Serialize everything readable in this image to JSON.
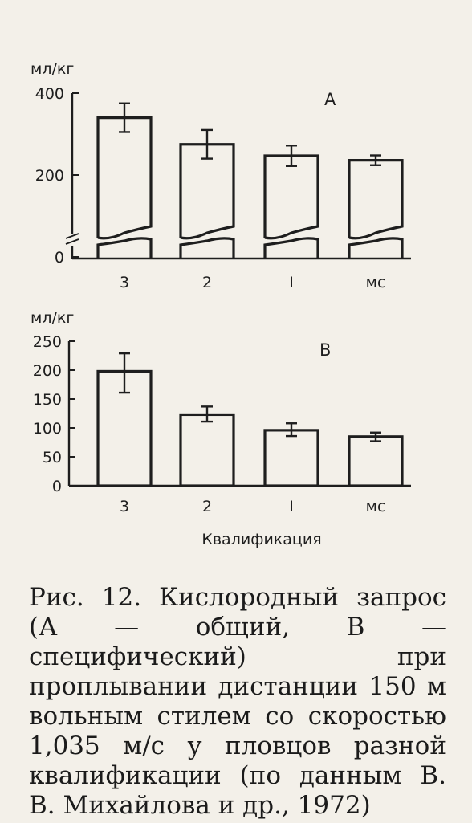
{
  "chart_data": [
    {
      "type": "bar",
      "panel_label": "А",
      "ylabel": "мл/кг",
      "categories": [
        "3",
        "2",
        "I",
        "мс"
      ],
      "values": [
        340,
        275,
        247,
        236
      ],
      "error": [
        [
          305,
          375
        ],
        [
          240,
          310
        ],
        [
          222,
          272
        ],
        [
          224,
          248
        ]
      ],
      "yticks": [
        "400",
        "200",
        "0"
      ],
      "ylim": [
        0,
        400
      ],
      "axis_break": true,
      "grid": false
    },
    {
      "type": "bar",
      "panel_label": "В",
      "ylabel": "мл/кг",
      "categories": [
        "3",
        "2",
        "I",
        "мс"
      ],
      "values": [
        198,
        123,
        96,
        85
      ],
      "error": [
        [
          161,
          229
        ],
        [
          111,
          137
        ],
        [
          86,
          108
        ],
        [
          77,
          92
        ]
      ],
      "yticks": [
        "250",
        "200",
        "150",
        "100",
        "50",
        "0"
      ],
      "ylim": [
        0,
        250
      ],
      "xlabel": "Квалификация",
      "grid": false
    }
  ],
  "caption": "Рис. 12. Кислородный запрос (А — общий, В — специфический) при проплывании дистанции 150 м вольным стилем со скоростью 1,035 м/с у пловцов разной квалификации (по данным В. В. Михайлова и др., 1972)"
}
